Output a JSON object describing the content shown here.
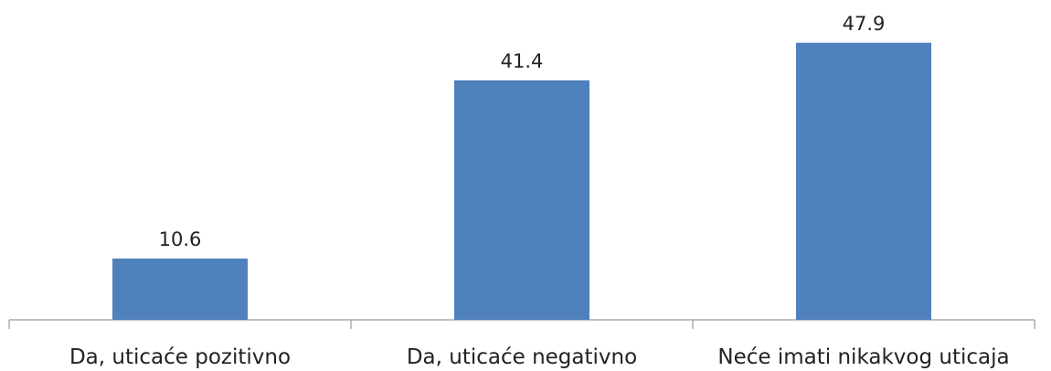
{
  "chart_data": {
    "type": "bar",
    "categories": [
      "Da, uticaće pozitivno",
      "Da, uticaće negativno",
      "Neće imati nikakvog uticaja"
    ],
    "values": [
      10.6,
      41.4,
      47.9
    ],
    "color": "#4f81bd",
    "ylim": [
      0,
      50
    ]
  }
}
